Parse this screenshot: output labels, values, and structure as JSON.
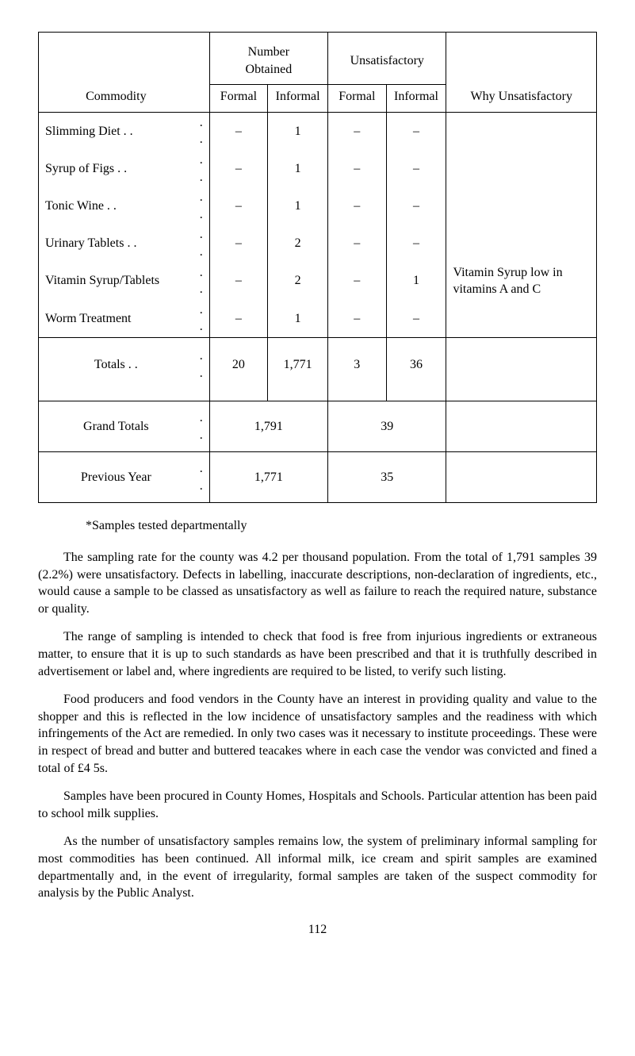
{
  "table": {
    "top_headers": {
      "number_obtained": "Number\nObtained",
      "unsatisfactory": "Unsatisfactory"
    },
    "sub_headers": {
      "commodity": "Commodity",
      "formal1": "Formal",
      "informal1": "Informal",
      "formal2": "Formal",
      "informal2": "Informal",
      "why": "Why Unsatisfactory"
    },
    "rows": [
      {
        "commodity": "Slimming Diet   . .",
        "dots": ". .",
        "f1": "–",
        "i1": "1",
        "f2": "–",
        "i2": "–",
        "why": ""
      },
      {
        "commodity": "Syrup of Figs    . .",
        "dots": ". .",
        "f1": "–",
        "i1": "1",
        "f2": "–",
        "i2": "–",
        "why": ""
      },
      {
        "commodity": "Tonic Wine       . .",
        "dots": ". .",
        "f1": "–",
        "i1": "1",
        "f2": "–",
        "i2": "–",
        "why": ""
      },
      {
        "commodity": "Urinary Tablets . .",
        "dots": ". .",
        "f1": "–",
        "i1": "2",
        "f2": "–",
        "i2": "–",
        "why": ""
      },
      {
        "commodity": "Vitamin Syrup/Tablets",
        "dots": ". .",
        "f1": "–",
        "i1": "2",
        "f2": "–",
        "i2": "1",
        "why": "Vitamin Syrup low in vitamins A and C"
      },
      {
        "commodity": "Worm Treatment",
        "dots": ". .",
        "f1": "–",
        "i1": "1",
        "f2": "–",
        "i2": "–",
        "why": ""
      }
    ],
    "totals": {
      "label": "Totals    . .",
      "dots": ". .",
      "f1": "20",
      "i1": "1,771",
      "f2": "3",
      "i2": "36"
    },
    "grand_totals": {
      "label": "Grand Totals",
      "dots": ". .",
      "num": "1,791",
      "unsat": "39"
    },
    "previous_year": {
      "label": "Previous Year",
      "dots": ". .",
      "num": "1,771",
      "unsat": "35"
    }
  },
  "footnote": "*Samples tested departmentally",
  "paragraphs": [
    "The sampling rate for the county was 4.2 per thousand population. From the total of 1,791 samples 39 (2.2%) were unsatisfactory. Defects in labelling, inaccurate descriptions, non-declaration of ingredients, etc., would cause a sample to be classed as unsatisfactory as well as failure to reach the required nature, substance or quality.",
    "The range of sampling is intended to check that food is free from injurious ingredients or extraneous matter, to ensure that it is up to such standards as have been prescribed and that it is truthfully described in advertisement or label and, where ingredients are required to be listed, to verify such listing.",
    "Food producers and food vendors in the County have an interest in providing quality and value to the shopper and this is reflected in the low incidence of unsatisfactory samples and the readiness with which infringements of the Act are remedied. In only two cases was it necessary to institute proceedings. These were in respect of bread and butter and buttered teacakes where in each case the vendor was convicted and fined a total of £4 5s.",
    "Samples have been procured in County Homes, Hospitals and Schools. Particular attention has been paid to school milk supplies.",
    "As the number of unsatisfactory samples remains low, the system of preliminary informal sampling for most commodities has been continued. All informal milk, ice cream and spirit samples are examined departmentally and, in the event of irregularity, formal samples are taken of the suspect commodity for analysis by the Public Analyst."
  ],
  "page_number": "112"
}
